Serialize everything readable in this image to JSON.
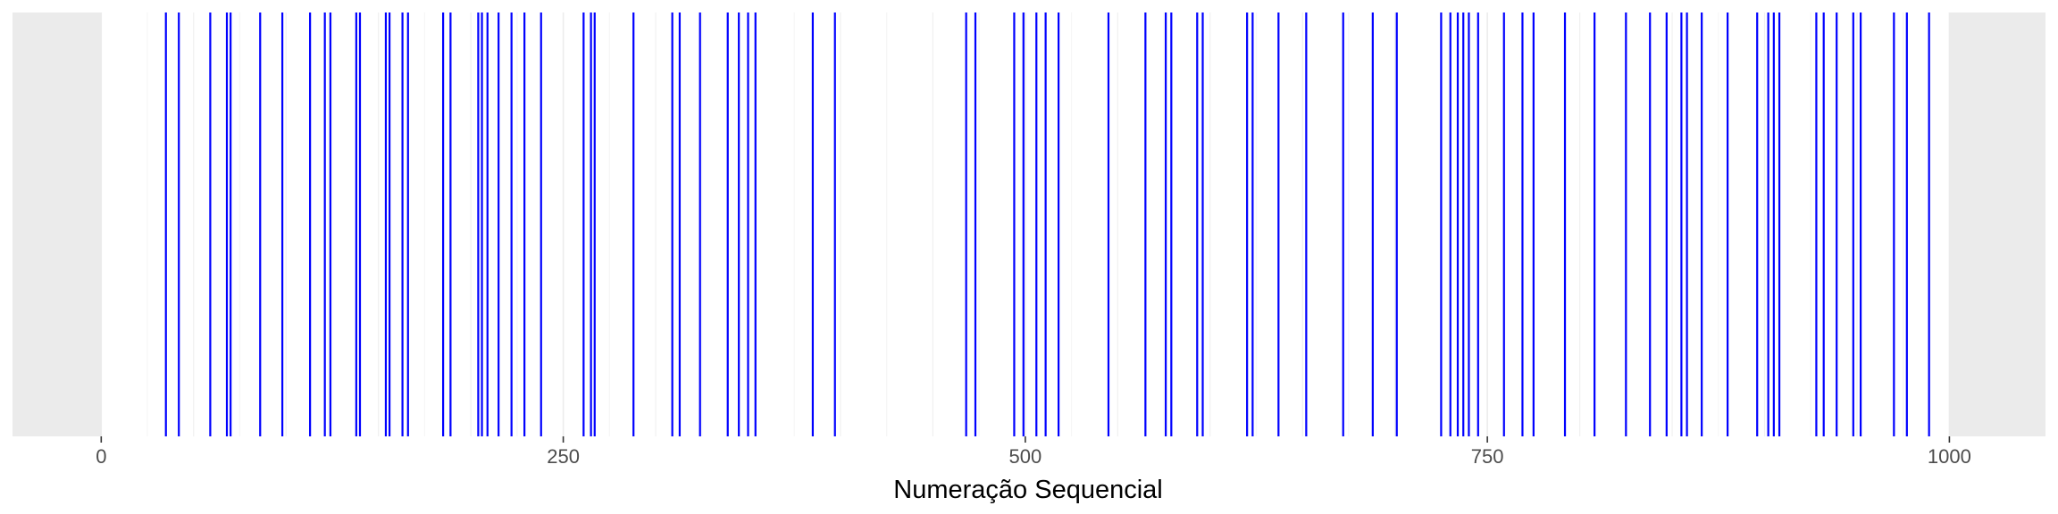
{
  "chart_data": {
    "type": "barcode",
    "title": "",
    "xlabel": "Numeração Sequencial",
    "ylabel": "",
    "xlim": [
      -48,
      1052
    ],
    "ylim": [
      0,
      1
    ],
    "x_ticks": [
      0,
      250,
      500,
      750,
      1000
    ],
    "x_tick_labels": [
      "0",
      "250",
      "500",
      "750",
      "1000"
    ],
    "data_range": [
      0,
      1000
    ],
    "grid": true,
    "legend": "none",
    "colors": {
      "events": "#0000ff",
      "data_range_background": "#ffffff",
      "outside_range_background": "#ebebeb",
      "grid": "#ebebeb",
      "tick_text": "#4d4d4d"
    },
    "events": [
      35,
      42,
      59,
      68,
      70,
      86,
      98,
      113,
      121,
      124,
      138,
      140,
      154,
      156,
      163,
      166,
      185,
      189,
      204,
      206,
      209,
      215,
      222,
      229,
      238,
      261,
      265,
      267,
      288,
      309,
      313,
      324,
      339,
      345,
      350,
      354,
      385,
      397,
      468,
      473,
      494,
      499,
      506,
      511,
      518,
      545,
      565,
      576,
      579,
      593,
      596,
      620,
      623,
      637,
      652,
      672,
      688,
      701,
      725,
      730,
      734,
      737,
      740,
      745,
      759,
      769,
      775,
      792,
      808,
      825,
      838,
      847,
      855,
      858,
      866,
      880,
      896,
      902,
      905,
      908,
      928,
      932,
      939,
      948,
      952,
      970,
      977,
      989
    ]
  }
}
